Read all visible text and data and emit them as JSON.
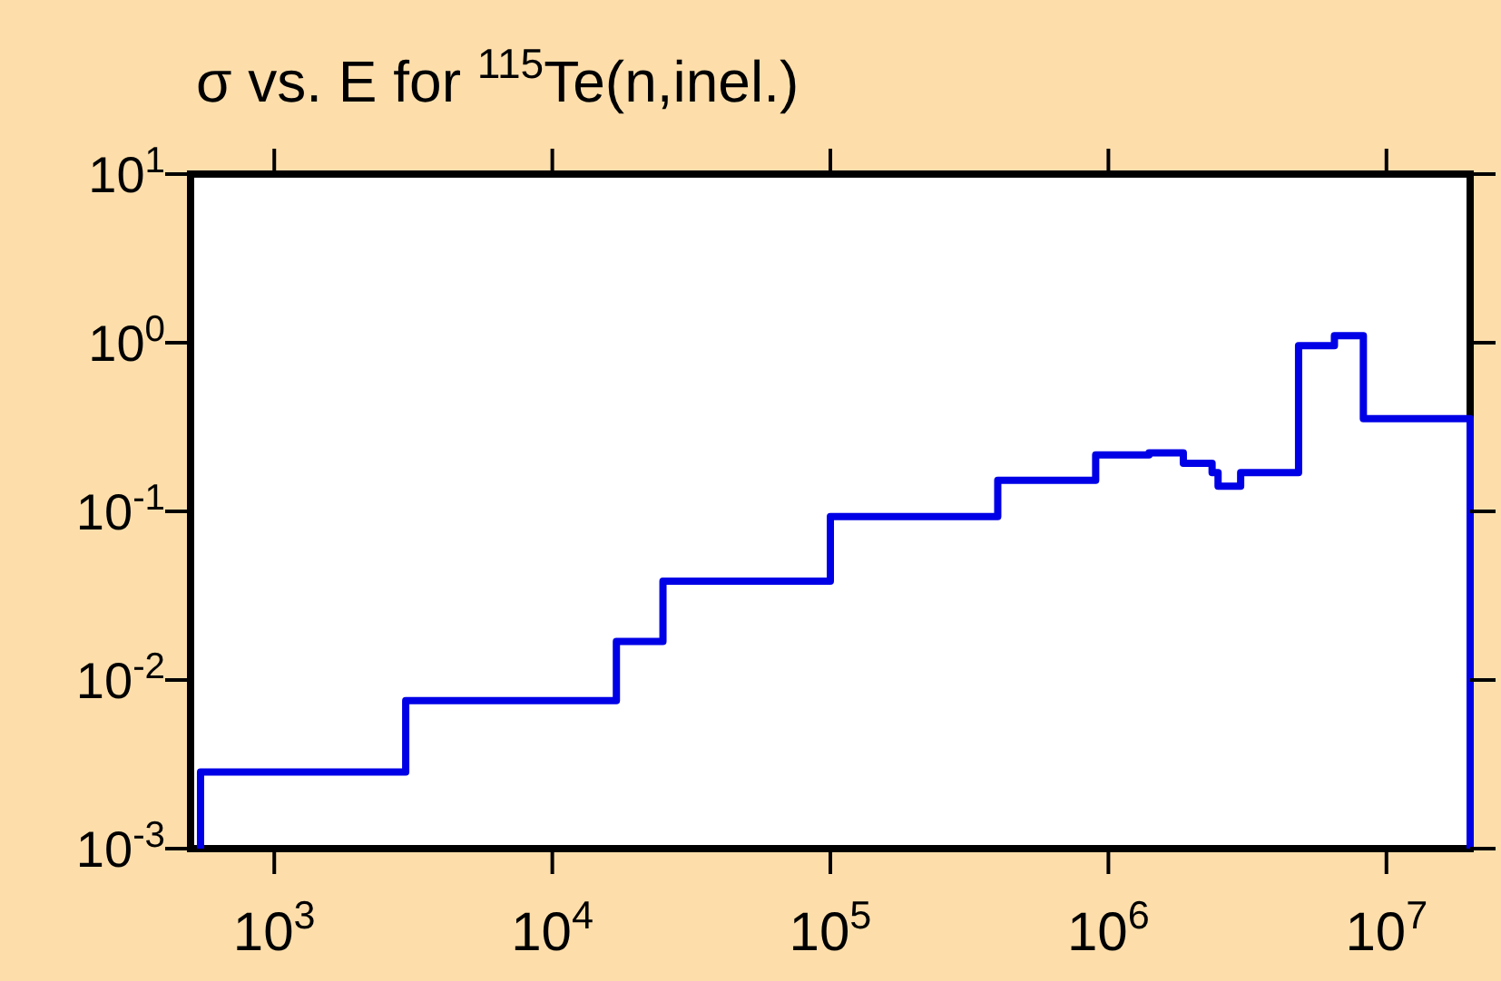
{
  "chart_data": {
    "type": "step",
    "title": "σ vs. E for $^{115}$Te(n,inel.)",
    "log": "xy",
    "grid": false,
    "marker": "none",
    "line_style": "solid",
    "xlim": [
      500,
      20000000
    ],
    "ylim": [
      0.001,
      10
    ],
    "xticks": [
      {
        "value": 1000,
        "label": "10$^{3}$"
      },
      {
        "value": 10000,
        "label": "10$^{4}$"
      },
      {
        "value": 100000,
        "label": "10$^{5}$"
      },
      {
        "value": 1000000,
        "label": "10$^{6}$"
      },
      {
        "value": 10000000,
        "label": "10$^{7}$"
      }
    ],
    "yticks": [
      {
        "value": 0.001,
        "label": "10$^{-3}$"
      },
      {
        "value": 0.01,
        "label": "10$^{-2}$"
      },
      {
        "value": 0.1,
        "label": "10$^{-1}$"
      },
      {
        "value": 1,
        "label": "10$^{0}$"
      },
      {
        "value": 10,
        "label": "10$^{1}$"
      }
    ],
    "series": [
      {
        "color": "#0000e6",
        "x": [
          543,
          543,
          2970,
          17000,
          25000,
          100000,
          400000,
          900000,
          1400000,
          1860000,
          2360000,
          2480000,
          2990000,
          4830000,
          6500000,
          8260000,
          20000000,
          20000000
        ],
        "values": [
          0.001,
          0.00285,
          0.00755,
          0.0169,
          0.0386,
          0.093,
          0.153,
          0.216,
          0.222,
          0.193,
          0.17,
          0.141,
          0.17,
          0.96,
          1.1,
          0.355,
          0.355,
          0.001
        ]
      }
    ]
  }
}
